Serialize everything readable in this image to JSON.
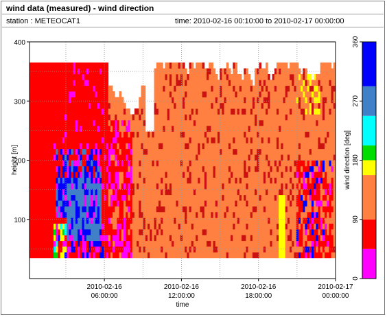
{
  "window": {
    "title": "wind data (measured) - wind direction"
  },
  "info": {
    "station": "station : METEOCAT1",
    "time_range": "time: 2010-02-16 00:10:00 to 2010-02-17 00:00:00"
  },
  "colors": {
    "magenta": "#ff00ff",
    "red": "#ff0000",
    "darkred": "#cc1111",
    "orange": "#ff8040",
    "yellow": "#ffff00",
    "green": "#00dd00",
    "cyan": "#00ffff",
    "steelblue": "#4080c8",
    "blue": "#0000ff"
  },
  "chart_data": {
    "type": "heatmap",
    "xlabel": "time",
    "ylabel": "height [m]",
    "colorbar_label": "wind direction [deg]",
    "x_ticks": [
      {
        "line1": "2010-02-16",
        "line2": "06:00:00",
        "hour": 6
      },
      {
        "line1": "2010-02-16",
        "line2": "12:00:00",
        "hour": 12
      },
      {
        "line1": "2010-02-16",
        "line2": "18:00:00",
        "hour": 18
      },
      {
        "line1": "2010-02-17",
        "line2": "00:00:00",
        "hour": 24
      }
    ],
    "xlim_hours": [
      0.17,
      24
    ],
    "y_ticks": [
      100,
      200,
      300,
      400
    ],
    "ylim": [
      0,
      400
    ],
    "colorbar_ticks": [
      0,
      90,
      180,
      270,
      360
    ],
    "colorbar_bands": [
      {
        "from": 0,
        "to": 45,
        "color": "#ff00ff"
      },
      {
        "from": 45,
        "to": 90,
        "color": "#ff0000"
      },
      {
        "from": 90,
        "to": 157.5,
        "color": "#ff8040"
      },
      {
        "from": 157.5,
        "to": 180,
        "color": "#ffff00"
      },
      {
        "from": 180,
        "to": 202.5,
        "color": "#00dd00"
      },
      {
        "from": 202.5,
        "to": 247.5,
        "color": "#00ffff"
      },
      {
        "from": 247.5,
        "to": 292.5,
        "color": "#4080c8"
      },
      {
        "from": 292.5,
        "to": 360,
        "color": "#0000ff"
      }
    ],
    "grid": true,
    "height_range_m": [
      35,
      365
    ],
    "regions": [
      {
        "hours": [
          0.5,
          3.0
        ],
        "heights": [
          35,
          365
        ],
        "direction_band": "red"
      },
      {
        "hours": [
          3.0,
          6.3
        ],
        "heights": [
          35,
          365
        ],
        "direction_band": "red"
      },
      {
        "hours": [
          2.0,
          6.0
        ],
        "heights": [
          35,
          210
        ],
        "direction_band": "blue/steelblue"
      },
      {
        "hours": [
          2.0,
          3.0
        ],
        "heights": [
          35,
          100
        ],
        "direction_band": "magenta/yellow/green/cyan"
      },
      {
        "hours": [
          6.3,
          24.0
        ],
        "heights": [
          35,
          365
        ],
        "direction_band": "orange"
      },
      {
        "hours": [
          19.5,
          20.0
        ],
        "heights": [
          35,
          140
        ],
        "direction_band": "yellow"
      },
      {
        "hours": [
          21.0,
          23.8
        ],
        "heights": [
          35,
          200
        ],
        "direction_band": "red/blue"
      },
      {
        "hours": [
          21.0,
          22.8
        ],
        "heights": [
          270,
          340
        ],
        "direction_band": "yellow"
      }
    ]
  }
}
